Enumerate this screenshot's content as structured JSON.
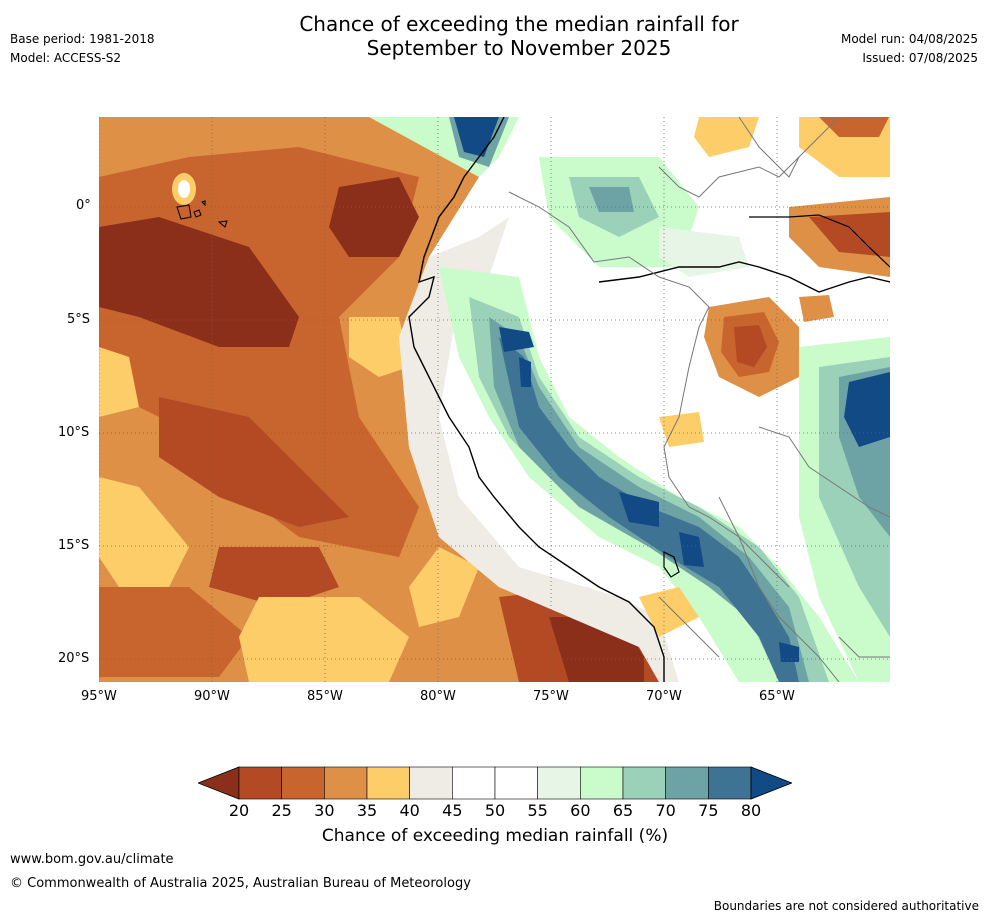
{
  "header": {
    "title_line1": "Chance of exceeding the median rainfall for",
    "title_line2": "September to November 2025",
    "base_period": "Base period: 1981-2018",
    "model": "Model: ACCESS-S2",
    "model_run": "Model run: 04/08/2025",
    "issued": "Issued: 07/08/2025"
  },
  "map": {
    "lat_labels": [
      "0°",
      "5°S",
      "10°S",
      "15°S",
      "20°S"
    ],
    "lon_labels": [
      "95°W",
      "90°W",
      "85°W",
      "80°W",
      "75°W",
      "70°W",
      "65°W"
    ],
    "palette": {
      "lt20": "#8b2f1a",
      "20_25": "#b34a24",
      "25_30": "#c8652f",
      "30_35": "#de9146",
      "35_40": "#fdcd6a",
      "40_45": "#efece6",
      "45_55": "#ffffff",
      "55_60": "#e7f5e7",
      "60_65": "#c9fbcb",
      "65_70": "#9bd1b9",
      "70_75": "#6ea3a5",
      "75_80": "#3f7394",
      "gt80": "#124a85"
    }
  },
  "colorbar": {
    "ticks": [
      "20",
      "25",
      "30",
      "35",
      "40",
      "45",
      "50",
      "55",
      "60",
      "65",
      "70",
      "75",
      "80"
    ],
    "colors": [
      "#b34a24",
      "#c8652f",
      "#de9146",
      "#fdcd6a",
      "#efece6",
      "#ffffff",
      "#ffffff",
      "#e7f5e7",
      "#c9fbcb",
      "#9bd1b9",
      "#6ea3a5",
      "#3f7394"
    ],
    "low_color": "#8b2f1a",
    "high_color": "#124a85",
    "label": "Chance of exceeding median rainfall (%)"
  },
  "footer": {
    "website": "www.bom.gov.au/climate",
    "copyright": "© Commonwealth of Australia 2025, Australian Bureau of Meteorology",
    "disclaimer": "Boundaries are not considered authoritative"
  }
}
